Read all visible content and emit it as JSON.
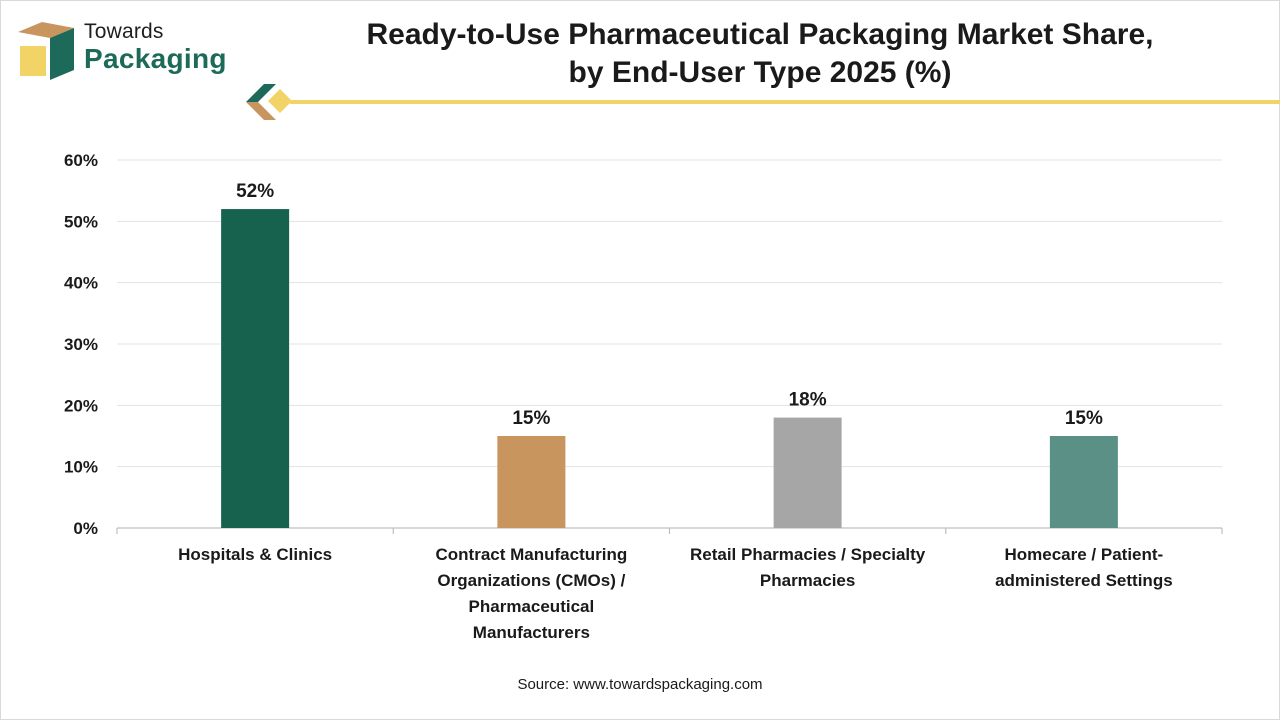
{
  "brand": {
    "name_line1": "Towards",
    "name_line2": "Packaging",
    "colors": {
      "green": "#1e6a5a",
      "yellow": "#f2d466",
      "tan": "#c9955e"
    }
  },
  "source_text": "Source: www.towardspackaging.com",
  "chart_data": {
    "type": "bar",
    "title": "Ready-to-Use Pharmaceutical Packaging Market Share, by End-User Type 2025 (%)",
    "title_lines": [
      "Ready-to-Use Pharmaceutical Packaging Market Share,",
      "by End-User Type 2025 (%)"
    ],
    "categories": [
      "Hospitals & Clinics",
      "Contract Manufacturing Organizations (CMOs) / Pharmaceutical Manufacturers",
      "Retail Pharmacies / Specialty Pharmacies",
      "Homecare / Patient-administered Settings"
    ],
    "category_label_lines": [
      [
        "Hospitals & Clinics"
      ],
      [
        "Contract Manufacturing",
        "Organizations (CMOs) /",
        "Pharmaceutical",
        "Manufacturers"
      ],
      [
        "Retail Pharmacies / Specialty",
        "Pharmacies"
      ],
      [
        "Homecare / Patient-",
        "administered Settings"
      ]
    ],
    "values": [
      52,
      15,
      18,
      15
    ],
    "data_labels": [
      "52%",
      "15%",
      "18%",
      "15%"
    ],
    "bar_colors": [
      "#17614f",
      "#c9955e",
      "#a6a6a6",
      "#5b9086"
    ],
    "ylim": [
      0,
      60
    ],
    "yticks": [
      0,
      10,
      20,
      30,
      40,
      50,
      60
    ],
    "ytick_labels": [
      "0%",
      "10%",
      "20%",
      "30%",
      "40%",
      "50%",
      "60%"
    ],
    "xlabel": "",
    "ylabel": "",
    "grid": true,
    "legend": "none"
  }
}
